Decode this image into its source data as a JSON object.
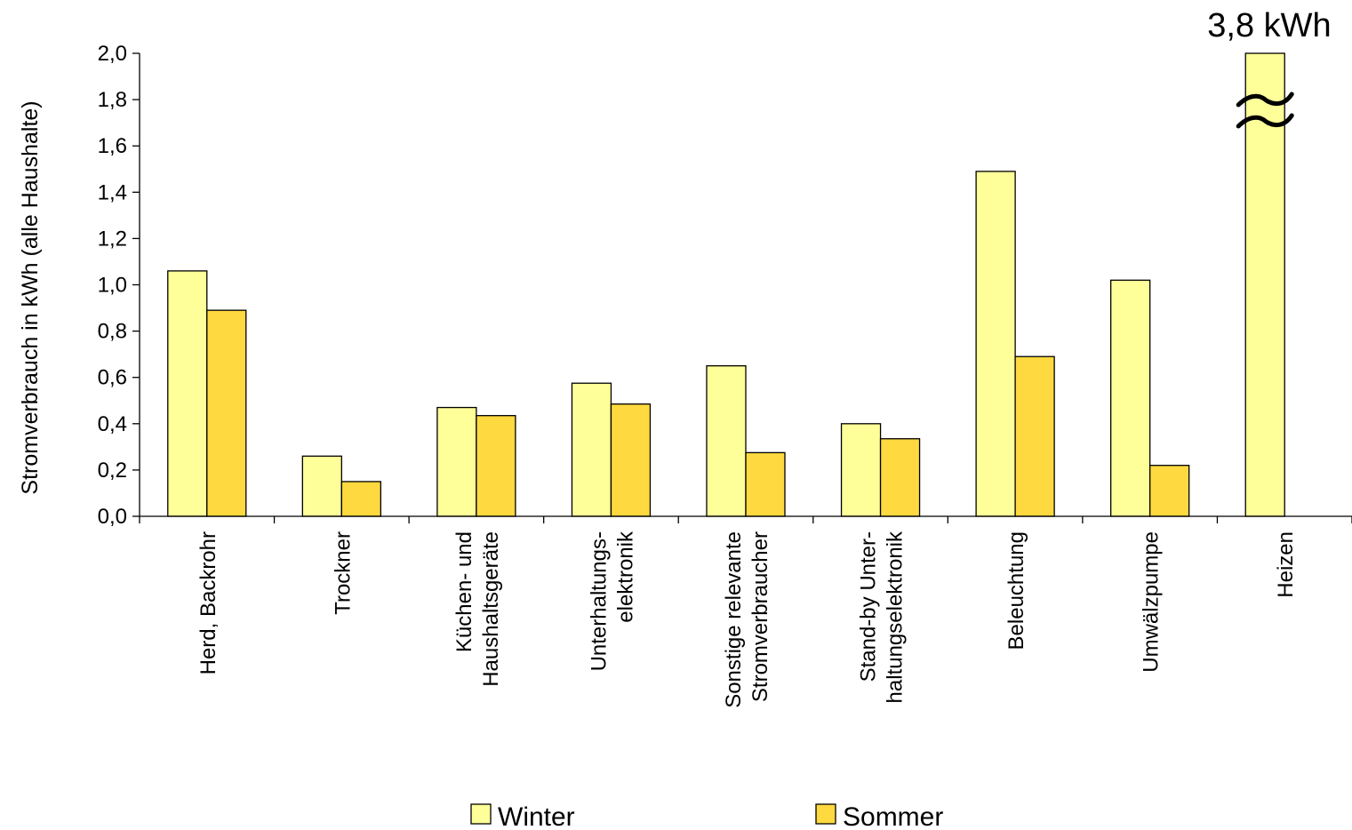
{
  "chart_data": {
    "type": "bar",
    "ylabel": "Stromverbrauch in kWh (alle Haushalte)",
    "ylim": [
      0,
      2
    ],
    "ytick_labels": [
      "0,0",
      "0,2",
      "0,4",
      "0,6",
      "0,8",
      "1,0",
      "1,2",
      "1,4",
      "1,6",
      "1,8",
      "2,0"
    ],
    "categories": [
      [
        "Herd, Backrohr"
      ],
      [
        "Trockner"
      ],
      [
        "Küchen- und",
        "Haushaltsgeräte"
      ],
      [
        "Unterhaltungs-",
        "elektronik"
      ],
      [
        "Sonstige relevante",
        "Stromverbraucher"
      ],
      [
        "Stand-by Unter-",
        "haltungselektronik"
      ],
      [
        "Beleuchtung"
      ],
      [
        "Umwälzpumpe"
      ],
      [
        "Heizen"
      ]
    ],
    "series": [
      {
        "name": "Winter",
        "color": "#ffff99",
        "values": [
          1.06,
          0.26,
          0.47,
          0.575,
          0.65,
          0.4,
          1.49,
          1.02,
          3.8
        ]
      },
      {
        "name": "Sommer",
        "color": "#ffd940",
        "values": [
          0.89,
          0.15,
          0.435,
          0.485,
          0.275,
          0.335,
          0.69,
          0.22,
          null
        ]
      }
    ],
    "axis_break": {
      "category_index": 8,
      "series": "Winter",
      "symbol": "≈"
    },
    "annotation": "3,8 kWh",
    "legend_position": "bottom"
  }
}
